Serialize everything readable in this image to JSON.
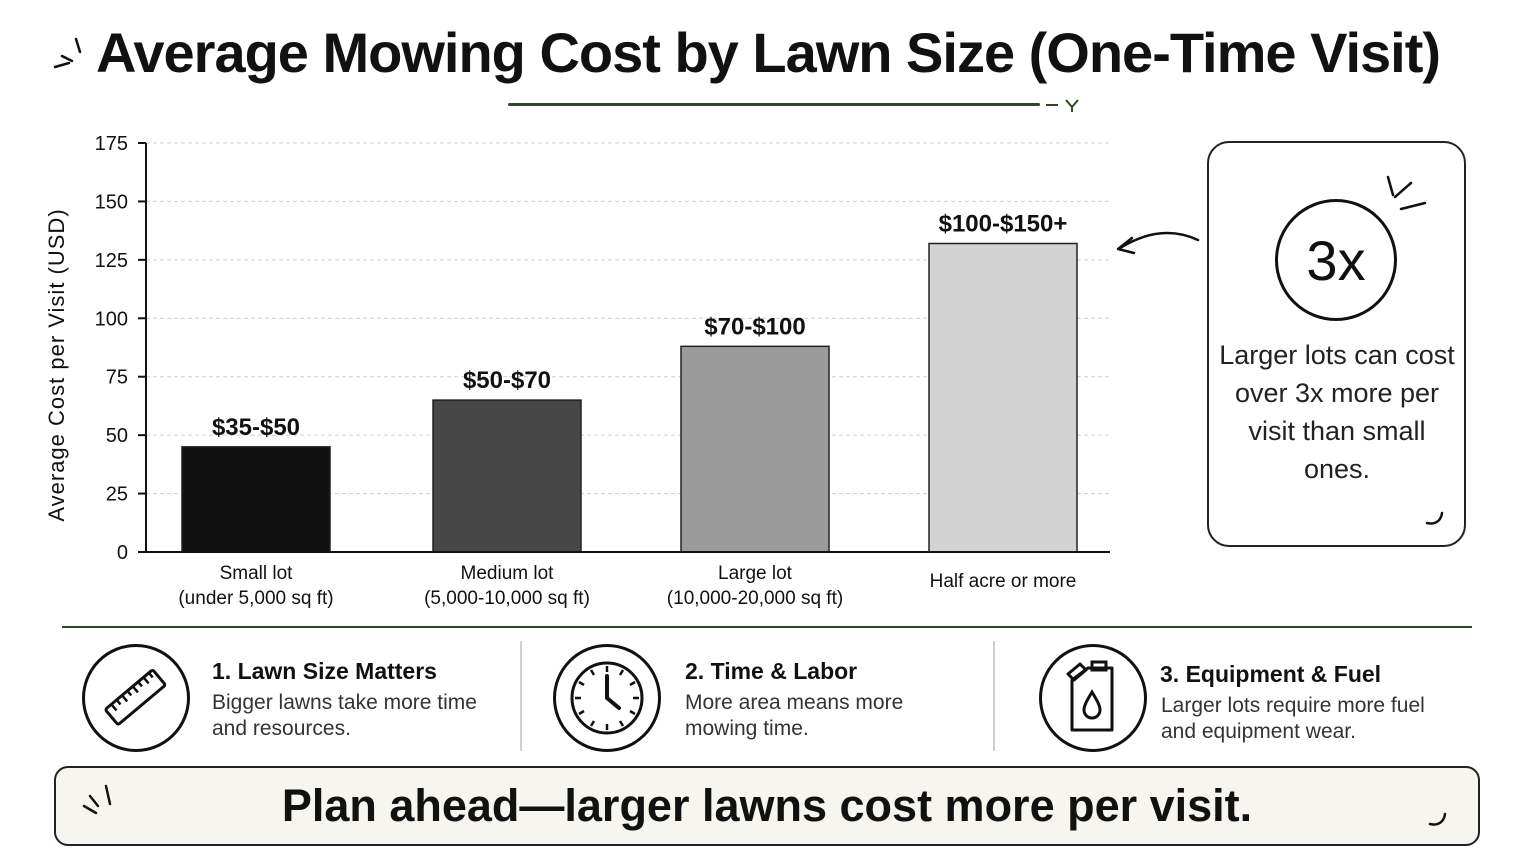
{
  "title": "Average Mowing Cost by Lawn Size (One-Time Visit)",
  "colors": {
    "accent": "#2f4a22",
    "bars": [
      "#111111",
      "#474747",
      "#9b9b9b",
      "#d3d3d3"
    ]
  },
  "chart_data": {
    "type": "bar",
    "title": "Average Mowing Cost by Lawn Size (One-Time Visit)",
    "ylabel": "Average Cost per Visit (USD)",
    "xlabel": "",
    "ylim": [
      0,
      175
    ],
    "yticks": [
      0,
      25,
      50,
      75,
      100,
      125,
      150,
      175
    ],
    "grid": true,
    "categories": [
      [
        "Small lot",
        "(under 5,000 sq ft)"
      ],
      [
        "Medium lot",
        "(5,000-10,000 sq ft)"
      ],
      [
        "Large lot",
        "(10,000-20,000 sq ft)"
      ],
      [
        "Half acre or more"
      ]
    ],
    "values": [
      45,
      65,
      88,
      132
    ],
    "data_labels": [
      "$35-$50",
      "$50-$70",
      "$70-$100",
      "$100-$150+"
    ]
  },
  "callout": {
    "badge": "3x",
    "text": "Larger lots can cost over 3x more per visit than small ones."
  },
  "factors": [
    {
      "title": "1. Lawn Size Matters",
      "description": "Bigger lawns take more time and resources.",
      "icon": "ruler-icon"
    },
    {
      "title": "2. Time & Labor",
      "description": "More area means more mowing time.",
      "icon": "clock-icon"
    },
    {
      "title": "3. Equipment & Fuel",
      "description": "Larger lots require more fuel and equipment wear.",
      "icon": "fuel-can-icon"
    }
  ],
  "banner": {
    "text": "Plan ahead—larger lawns cost more per visit."
  }
}
